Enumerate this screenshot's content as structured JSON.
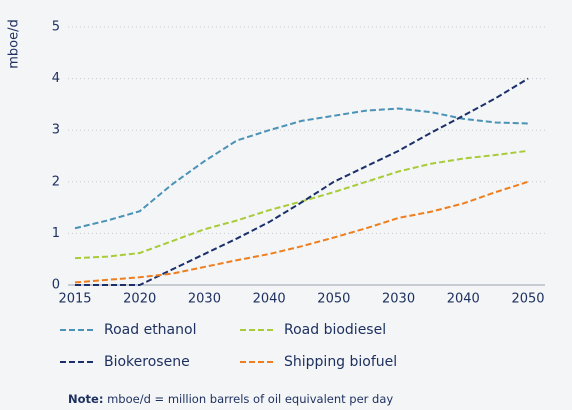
{
  "chart_data": {
    "type": "line",
    "y_label": "mboe/d",
    "categories": [
      "2015",
      null,
      "2020",
      null,
      "2030",
      null,
      "2040",
      null,
      "2050",
      null,
      "2030",
      null,
      "2040",
      null,
      "2050"
    ],
    "series": [
      {
        "name": "Road ethanol",
        "color": "#4a92b6",
        "values": [
          1.1,
          1.25,
          1.43,
          1.95,
          2.4,
          2.8,
          3.0,
          3.18,
          3.28,
          3.38,
          3.42,
          3.35,
          3.22,
          3.15,
          3.13
        ]
      },
      {
        "name": "Road biodiesel",
        "color": "#a9cb37",
        "values": [
          0.52,
          0.55,
          0.62,
          0.85,
          1.08,
          1.25,
          1.45,
          1.62,
          1.8,
          2.0,
          2.2,
          2.35,
          2.45,
          2.52,
          2.6
        ]
      },
      {
        "name": "Biokerosene",
        "color": "#1b2f6b",
        "values": [
          0,
          0,
          0,
          0.3,
          0.6,
          0.9,
          1.22,
          1.6,
          2.0,
          2.3,
          2.6,
          2.95,
          3.28,
          3.62,
          4.0
        ]
      },
      {
        "name": "Shipping biofuel",
        "color": "#ef7e1e",
        "values": [
          0.05,
          0.1,
          0.15,
          0.22,
          0.35,
          0.48,
          0.6,
          0.75,
          0.92,
          1.1,
          1.3,
          1.42,
          1.58,
          1.8,
          2.0
        ]
      }
    ],
    "ylim": [
      0,
      5
    ],
    "yticks": [
      0,
      1,
      2,
      3,
      4,
      5
    ],
    "grid": true,
    "note_label": "Note:",
    "note": "mboe/d = million barrels of oil equivalent per day"
  }
}
